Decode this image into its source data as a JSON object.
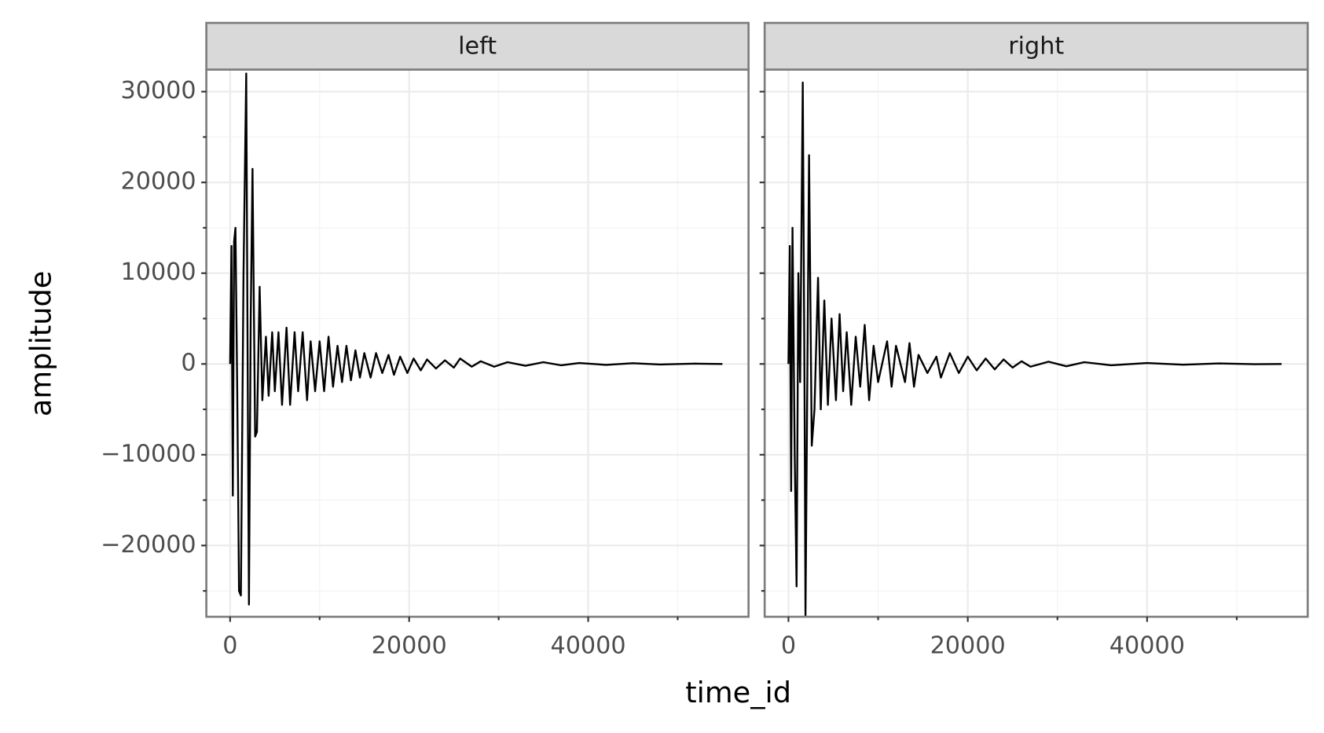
{
  "xlabel": "time_id",
  "ylabel": "amplitude",
  "chart_data": [
    {
      "type": "line",
      "title": "left",
      "color": "#000000",
      "x": [
        0,
        150,
        300,
        450,
        600,
        800,
        1000,
        1200,
        1500,
        1800,
        2000,
        2100,
        2300,
        2500,
        2800,
        3000,
        3300,
        3600,
        4000,
        4300,
        4700,
        5000,
        5400,
        5800,
        6300,
        6700,
        7200,
        7600,
        8100,
        8600,
        9000,
        9500,
        10000,
        10500,
        11000,
        11500,
        12000,
        12500,
        13000,
        13500,
        14000,
        14500,
        15000,
        15700,
        16300,
        17000,
        17700,
        18300,
        19000,
        19800,
        20500,
        21300,
        22000,
        23000,
        24000,
        25000,
        25700,
        27000,
        28000,
        29500,
        31000,
        33000,
        35000,
        37000,
        39000,
        42000,
        45000,
        48000,
        52000,
        55000
      ],
      "values": [
        0,
        13000,
        -14500,
        13500,
        15000,
        -3000,
        -25000,
        -25500,
        10000,
        32000,
        -8000,
        -26500,
        5000,
        21500,
        -8000,
        -7500,
        8500,
        -4000,
        3000,
        -3500,
        3500,
        -3000,
        3500,
        -4500,
        4000,
        -4500,
        3500,
        -3000,
        3500,
        -4000,
        2500,
        -3000,
        2500,
        -3000,
        3000,
        -2500,
        2000,
        -2000,
        2000,
        -1800,
        1500,
        -1500,
        1200,
        -1500,
        1200,
        -1000,
        1000,
        -1200,
        800,
        -1000,
        600,
        -700,
        500,
        -500,
        400,
        -400,
        600,
        -300,
        300,
        -300,
        200,
        -200,
        200,
        -150,
        100,
        -100,
        80,
        -60,
        40,
        0
      ],
      "xlim": [
        -2654,
        57915
      ],
      "ylim": [
        -27850,
        32430
      ],
      "xticks": [
        0,
        20000,
        40000
      ],
      "xticks_minor": [
        10000,
        30000,
        50000
      ],
      "yticks": [
        {
          "value": -20000,
          "label": "−20000"
        },
        {
          "value": -10000,
          "label": "−10000"
        },
        0,
        10000,
        20000,
        30000
      ],
      "yticks_minor": [
        -25000,
        -15000,
        -5000,
        5000,
        15000,
        25000
      ],
      "grid": true,
      "show_ytick_labels": true
    },
    {
      "type": "line",
      "title": "right",
      "color": "#000000",
      "x": [
        0,
        150,
        300,
        450,
        700,
        900,
        1100,
        1300,
        1600,
        1800,
        1900,
        2300,
        2600,
        2900,
        3300,
        3600,
        4000,
        4400,
        4800,
        5300,
        5700,
        6100,
        6500,
        7000,
        7500,
        8000,
        8500,
        9000,
        9500,
        10000,
        11000,
        11500,
        12000,
        13000,
        13500,
        14000,
        14500,
        15500,
        16500,
        17000,
        18000,
        19000,
        20000,
        21000,
        22000,
        23000,
        24000,
        25000,
        26000,
        27000,
        29000,
        31000,
        33000,
        36000,
        40000,
        44000,
        48000,
        52000,
        55000
      ],
      "values": [
        0,
        13000,
        -14000,
        15000,
        -10000,
        -24500,
        10000,
        -2000,
        31000,
        -5000,
        -27800,
        23000,
        -9000,
        -5000,
        9500,
        -5000,
        7000,
        -4500,
        5000,
        -4000,
        5500,
        -3000,
        3500,
        -4500,
        3000,
        -2500,
        4300,
        -4000,
        2000,
        -2000,
        2500,
        -2500,
        2000,
        -2000,
        2300,
        -2500,
        1000,
        -1000,
        800,
        -1500,
        1200,
        -1000,
        800,
        -700,
        600,
        -600,
        500,
        -400,
        300,
        -300,
        250,
        -250,
        200,
        -150,
        100,
        -80,
        60,
        -30,
        0
      ],
      "xlim": [
        -2654,
        57915
      ],
      "ylim": [
        -27850,
        32430
      ],
      "xticks": [
        0,
        20000,
        40000
      ],
      "xticks_minor": [
        10000,
        30000,
        50000
      ],
      "yticks": [
        {
          "value": -20000,
          "label": "−20000"
        },
        {
          "value": -10000,
          "label": "−10000"
        },
        0,
        10000,
        20000,
        30000
      ],
      "yticks_minor": [
        -25000,
        -15000,
        -5000,
        5000,
        15000,
        25000
      ],
      "grid": true,
      "show_ytick_labels": false
    }
  ]
}
